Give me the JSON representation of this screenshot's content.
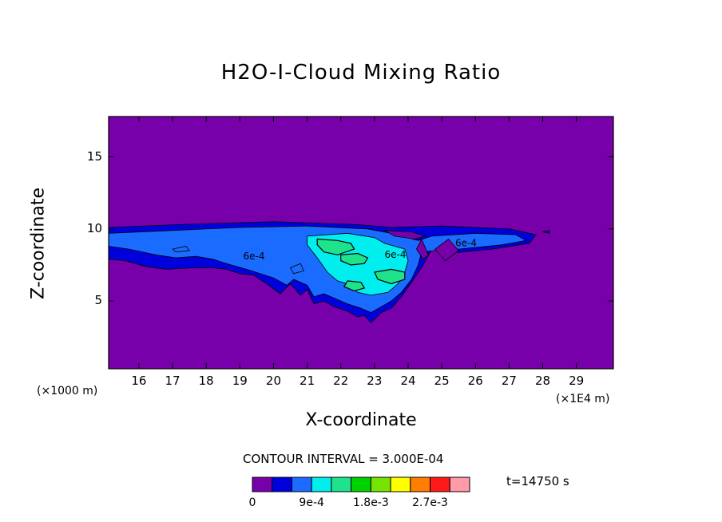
{
  "chart_data": {
    "type": "heatmap",
    "title": "H2O-I-Cloud Mixing Ratio",
    "xlabel": "X-coordinate",
    "ylabel": "Z-coordinate",
    "x_unit_left": "(×1000 m)",
    "x_unit_right": "(×1E4 m)",
    "x_ticks": [
      "16",
      "17",
      "18",
      "19",
      "20",
      "21",
      "22",
      "23",
      "24",
      "25",
      "26",
      "27",
      "28",
      "29"
    ],
    "y_ticks": [
      "5",
      "10",
      "15"
    ],
    "xlim": [
      15.1,
      30.1
    ],
    "ylim": [
      0.3,
      17.8
    ],
    "contour_interval": "CONTOUR INTERVAL = 3.000E-04",
    "time_label": "t=14750 s",
    "contour_labels": [
      "6e-4",
      "6e-4",
      "6e-4"
    ],
    "colorbar": {
      "labels": [
        "0",
        "9e-4",
        "1.8e-3",
        "2.7e-3"
      ],
      "levels": [
        0,
        0.0003,
        0.0006,
        0.0009,
        0.0012,
        0.0015,
        0.0018,
        0.0021,
        0.0024,
        0.0027,
        0.003
      ],
      "colors": [
        "#7700aa",
        "#0000dd",
        "#1a6bff",
        "#00eeee",
        "#1ee38c",
        "#00d200",
        "#77e400",
        "#ffff00",
        "#ff7e00",
        "#ff1a1a",
        "#ff9aa8"
      ]
    },
    "regions": [
      {
        "level": 1,
        "color": "#0000dd",
        "points": [
          [
            15.1,
            10.1
          ],
          [
            17.2,
            10.3
          ],
          [
            20,
            10.5
          ],
          [
            22.5,
            10.3
          ],
          [
            23.5,
            10.1
          ],
          [
            25,
            10.2
          ],
          [
            27,
            10.0
          ],
          [
            27.8,
            9.6
          ],
          [
            27.6,
            9.0
          ],
          [
            26.5,
            8.6
          ],
          [
            25.2,
            8.3
          ],
          [
            24.7,
            8.6
          ],
          [
            24.4,
            7.3
          ],
          [
            24.1,
            6.3
          ],
          [
            23.8,
            5.3
          ],
          [
            23.5,
            4.5
          ],
          [
            23.2,
            4.2
          ],
          [
            22.9,
            3.5
          ],
          [
            22.7,
            4.0
          ],
          [
            22.5,
            3.9
          ],
          [
            22.2,
            4.3
          ],
          [
            21.8,
            4.6
          ],
          [
            21.5,
            5.0
          ],
          [
            21.2,
            4.8
          ],
          [
            21.0,
            5.8
          ],
          [
            20.8,
            5.4
          ],
          [
            20.5,
            6.2
          ],
          [
            20.2,
            5.5
          ],
          [
            19.8,
            6.2
          ],
          [
            19.4,
            6.8
          ],
          [
            19.0,
            6.9
          ],
          [
            18.6,
            7.2
          ],
          [
            18.2,
            7.3
          ],
          [
            17.6,
            7.3
          ],
          [
            16.8,
            7.2
          ],
          [
            16.2,
            7.4
          ],
          [
            15.6,
            7.8
          ],
          [
            15.1,
            7.9
          ]
        ]
      },
      {
        "level": 2,
        "color": "#1a6bff",
        "points": [
          [
            15.1,
            9.7
          ],
          [
            17,
            9.9
          ],
          [
            19,
            10.1
          ],
          [
            21,
            10.2
          ],
          [
            22.8,
            10.0
          ],
          [
            23.5,
            9.7
          ],
          [
            24.3,
            9.2
          ],
          [
            24.7,
            9.5
          ],
          [
            26,
            9.7
          ],
          [
            27.2,
            9.6
          ],
          [
            27.5,
            9.2
          ],
          [
            26.8,
            8.9
          ],
          [
            25.5,
            8.6
          ],
          [
            24.8,
            8.5
          ],
          [
            24.4,
            8.4
          ],
          [
            24.3,
            7.5
          ],
          [
            24.1,
            6.5
          ],
          [
            23.8,
            5.6
          ],
          [
            23.5,
            5.0
          ],
          [
            23.2,
            4.6
          ],
          [
            22.9,
            4.2
          ],
          [
            22.6,
            4.5
          ],
          [
            22.2,
            4.8
          ],
          [
            21.8,
            5.2
          ],
          [
            21.5,
            5.5
          ],
          [
            21.2,
            5.3
          ],
          [
            21.0,
            6.1
          ],
          [
            20.6,
            6.5
          ],
          [
            20.4,
            6.1
          ],
          [
            20.0,
            6.6
          ],
          [
            19.6,
            6.9
          ],
          [
            19.2,
            7.2
          ],
          [
            18.6,
            7.6
          ],
          [
            18.2,
            7.9
          ],
          [
            17.7,
            8.1
          ],
          [
            17.1,
            8.0
          ],
          [
            16.5,
            8.2
          ],
          [
            15.7,
            8.6
          ],
          [
            15.1,
            8.8
          ]
        ]
      },
      {
        "level": 3,
        "color": "#00eeee",
        "points": [
          [
            21.0,
            9.5
          ],
          [
            22.2,
            9.7
          ],
          [
            23.0,
            9.4
          ],
          [
            23.3,
            9.0
          ],
          [
            23.9,
            8.6
          ],
          [
            24.0,
            7.8
          ],
          [
            23.9,
            7.0
          ],
          [
            23.7,
            6.2
          ],
          [
            23.4,
            5.6
          ],
          [
            22.9,
            5.4
          ],
          [
            22.5,
            5.6
          ],
          [
            22.2,
            6.2
          ],
          [
            21.9,
            6.4
          ],
          [
            21.6,
            7.0
          ],
          [
            21.3,
            8.0
          ],
          [
            21.0,
            8.9
          ]
        ]
      },
      {
        "level": 4,
        "color": "#1ee38c",
        "points": [
          [
            21.3,
            9.3
          ],
          [
            21.9,
            9.2
          ],
          [
            22.3,
            9.0
          ],
          [
            22.4,
            8.6
          ],
          [
            21.9,
            8.2
          ],
          [
            21.5,
            8.4
          ],
          [
            21.3,
            8.9
          ]
        ]
      },
      {
        "level": 4,
        "color": "#1ee38c",
        "points": [
          [
            22.0,
            8.2
          ],
          [
            22.5,
            8.3
          ],
          [
            22.8,
            8.0
          ],
          [
            22.7,
            7.6
          ],
          [
            22.3,
            7.5
          ],
          [
            22.0,
            7.8
          ]
        ]
      },
      {
        "level": 4,
        "color": "#1ee38c",
        "points": [
          [
            23.0,
            7.0
          ],
          [
            23.5,
            7.2
          ],
          [
            23.9,
            7.0
          ],
          [
            23.9,
            6.5
          ],
          [
            23.5,
            6.2
          ],
          [
            23.1,
            6.5
          ]
        ]
      },
      {
        "level": 4,
        "color": "#1ee38c",
        "points": [
          [
            22.2,
            6.4
          ],
          [
            22.6,
            6.3
          ],
          [
            22.7,
            5.9
          ],
          [
            22.4,
            5.7
          ],
          [
            22.1,
            6.0
          ]
        ]
      },
      {
        "level": 0,
        "color": "#7700aa",
        "points": [
          [
            23.3,
            9.9
          ],
          [
            24.1,
            9.8
          ],
          [
            24.5,
            9.5
          ],
          [
            24.2,
            9.3
          ],
          [
            23.6,
            9.5
          ]
        ]
      },
      {
        "level": 0,
        "color": "#7700aa",
        "points": [
          [
            24.8,
            8.6
          ],
          [
            25.2,
            9.3
          ],
          [
            25.5,
            8.5
          ],
          [
            25.1,
            7.8
          ]
        ]
      },
      {
        "level": 0,
        "color": "#7700aa",
        "points": [
          [
            24.25,
            8.6
          ],
          [
            24.4,
            9.3
          ],
          [
            24.6,
            8.2
          ],
          [
            24.45,
            7.9
          ]
        ]
      },
      {
        "level": 2,
        "color": "#1a6bff",
        "points": [
          [
            17.0,
            8.6
          ],
          [
            17.4,
            8.8
          ],
          [
            17.5,
            8.5
          ],
          [
            17.1,
            8.4
          ]
        ]
      },
      {
        "level": 2,
        "color": "#1a6bff",
        "points": [
          [
            20.5,
            7.3
          ],
          [
            20.8,
            7.6
          ],
          [
            20.9,
            7.1
          ],
          [
            20.6,
            6.9
          ]
        ]
      },
      {
        "level": 1,
        "color": "#0000dd",
        "points": [
          [
            28.0,
            9.8
          ],
          [
            28.2,
            9.9
          ],
          [
            28.2,
            9.7
          ]
        ]
      }
    ]
  }
}
